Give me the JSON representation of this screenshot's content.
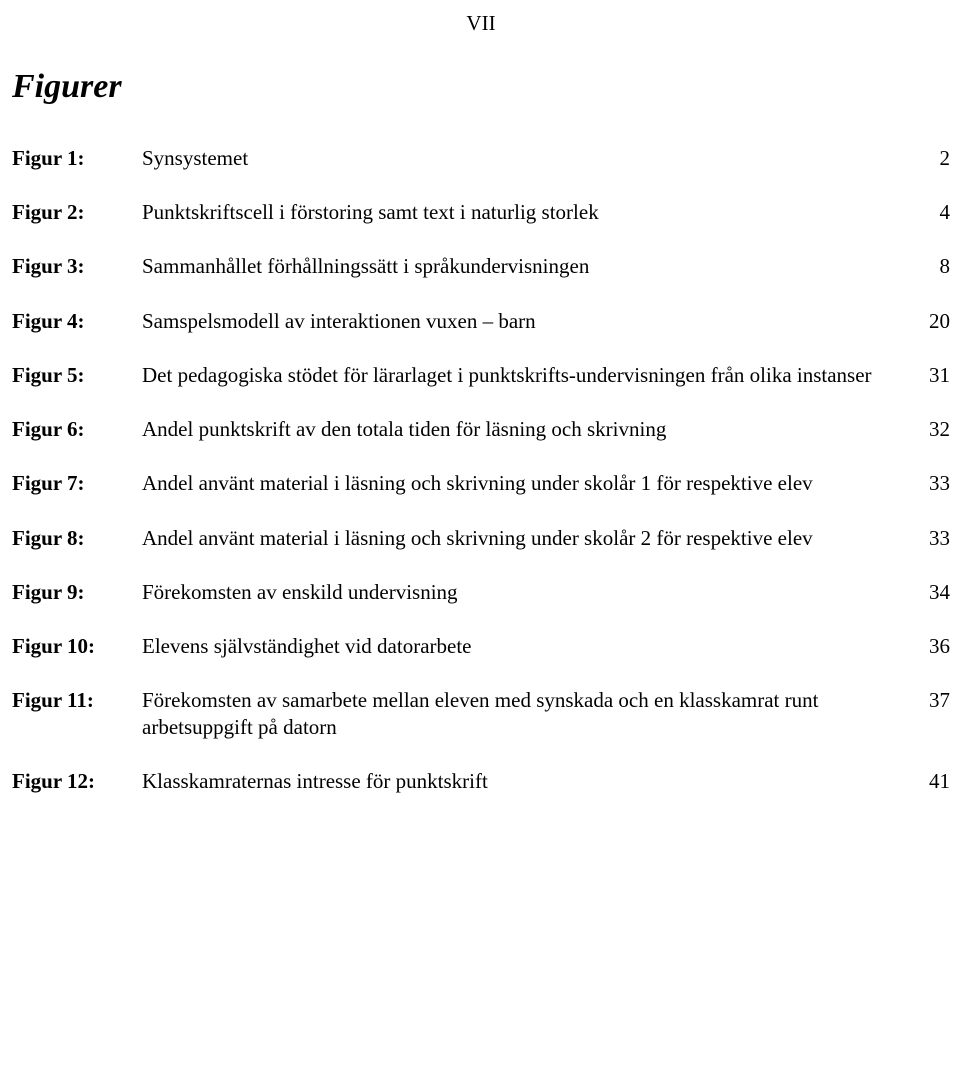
{
  "page_number_roman": "VII",
  "section_title": "Figurer",
  "entries": [
    {
      "label": "Figur 1:",
      "desc": "Synsystemet",
      "page": "2"
    },
    {
      "label": "Figur 2:",
      "desc": "Punktskriftscell i förstoring samt text i naturlig storlek",
      "page": "4"
    },
    {
      "label": "Figur 3:",
      "desc": "Sammanhållet förhållningssätt i språkundervisningen",
      "page": "8"
    },
    {
      "label": "Figur 4:",
      "desc": "Samspelsmodell av interaktionen vuxen – barn",
      "page": "20"
    },
    {
      "label": "Figur 5:",
      "desc": "Det pedagogiska stödet för lärarlaget i punktskrifts-undervisningen från olika instanser",
      "page": "31"
    },
    {
      "label": "Figur 6:",
      "desc": "Andel punktskrift av den totala tiden för läsning och skrivning",
      "page": "32"
    },
    {
      "label": "Figur 7:",
      "desc": "Andel använt material i läsning och skrivning under skolår 1 för respektive elev",
      "page": "33"
    },
    {
      "label": "Figur 8:",
      "desc": "Andel använt material i läsning och skrivning under skolår 2 för respektive elev",
      "page": "33"
    },
    {
      "label": "Figur 9:",
      "desc": "Förekomsten av enskild undervisning",
      "page": "34"
    },
    {
      "label": "Figur 10:",
      "desc": "Elevens självständighet vid datorarbete",
      "page": "36"
    },
    {
      "label": "Figur 11:",
      "desc": "Förekomsten av samarbete mellan eleven med synskada och en klasskamrat runt arbetsuppgift på datorn",
      "page": "37"
    },
    {
      "label": "Figur 12:",
      "desc": "Klasskamraternas intresse för punktskrift",
      "page": "41"
    }
  ]
}
